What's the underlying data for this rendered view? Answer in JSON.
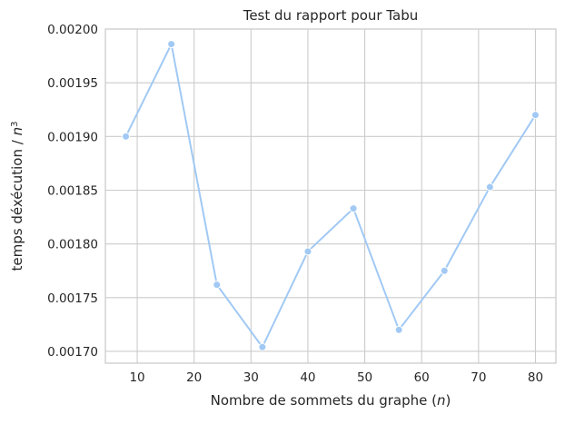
{
  "chart_data": {
    "type": "line",
    "title": "Test du rapport pour Tabu",
    "xlabel": "Nombre de sommets du graphe (",
    "xlabel_var": "n",
    "xlabel_end": ")",
    "ylabel": "temps déxécution / ",
    "ylabel_var": "n",
    "ylabel_exp": "3",
    "x": [
      8,
      16,
      24,
      32,
      40,
      48,
      56,
      64,
      72,
      80
    ],
    "y": [
      0.0019,
      0.001986,
      0.001762,
      0.001704,
      0.001793,
      0.001833,
      0.00172,
      0.001775,
      0.001853,
      0.00192
    ],
    "xlim": [
      4.4,
      83.6
    ],
    "ylim": [
      0.001689,
      0.002
    ],
    "xticks": [
      10,
      20,
      30,
      40,
      50,
      60,
      70,
      80
    ],
    "xtick_labels": [
      "10",
      "20",
      "30",
      "40",
      "50",
      "60",
      "70",
      "80"
    ],
    "yticks": [
      0.0017,
      0.00175,
      0.0018,
      0.00185,
      0.0019,
      0.00195,
      0.002
    ],
    "ytick_labels": [
      "0.00170",
      "0.00175",
      "0.00180",
      "0.00185",
      "0.00190",
      "0.00195",
      "0.00200"
    ],
    "grid": true,
    "line_color": "#a1c9f4",
    "marker_color": "#a1c9f4"
  }
}
